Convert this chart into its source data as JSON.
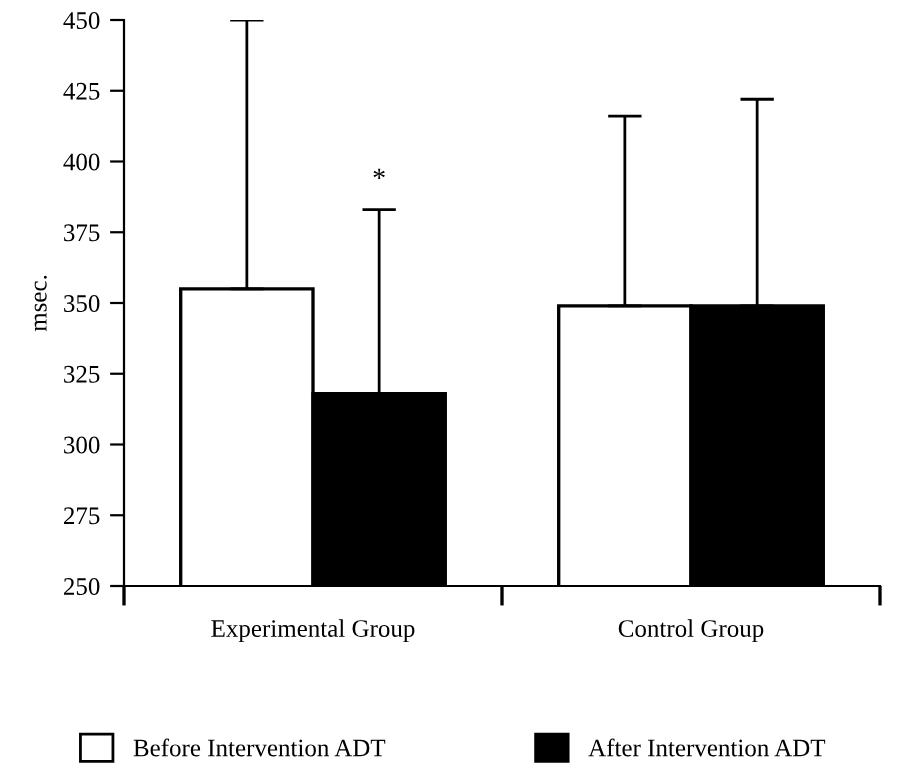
{
  "chart_data": {
    "type": "bar",
    "ylabel": "msec.",
    "categories": [
      "Experimental Group",
      "Control Group"
    ],
    "series": [
      {
        "name": "Before Intervention ADT",
        "color": "#ffffff",
        "values": [
          355,
          349
        ],
        "errors": [
          [
            355,
            450
          ],
          [
            349,
            416
          ]
        ]
      },
      {
        "name": "After Intervention ADT",
        "color": "#000000",
        "values": [
          318,
          349
        ],
        "errors": [
          [
            318,
            383
          ],
          [
            349,
            422
          ]
        ]
      }
    ],
    "ylim": [
      250,
      450
    ],
    "yticks": [
      250,
      275,
      300,
      325,
      350,
      375,
      400,
      425,
      450
    ],
    "annotations": [
      "*"
    ],
    "grid": false,
    "legend": "bottom"
  }
}
